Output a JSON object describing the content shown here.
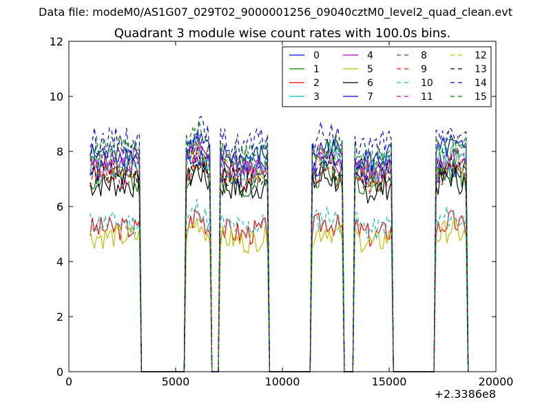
{
  "suptitle": "Data file: modeM0/AS1G07_029T02_9000001256_09040cztM0_level2_quad_clean.evt",
  "chart_data": {
    "type": "line",
    "title": "Quadrant 3 module wise count rates with 100.0s bins.",
    "xlabel": "",
    "ylabel": "",
    "x_offset_label": "+2.3386e8",
    "xlim": [
      0,
      20000
    ],
    "ylim": [
      0,
      12
    ],
    "xticks": [
      0,
      5000,
      10000,
      15000,
      20000
    ],
    "yticks": [
      0,
      2,
      4,
      6,
      8,
      10,
      12
    ],
    "grid": false,
    "legend_position": "top-right",
    "legend_columns": 4,
    "series": [
      {
        "name": "0",
        "color": "#0000ff",
        "dash": "solid",
        "level": 7.3,
        "amp": 0.5,
        "seed": 1
      },
      {
        "name": "1",
        "color": "#008000",
        "dash": "solid",
        "level": 7.0,
        "amp": 0.5,
        "seed": 2
      },
      {
        "name": "2",
        "color": "#ff0000",
        "dash": "solid",
        "level": 5.2,
        "amp": 0.45,
        "seed": 3
      },
      {
        "name": "3",
        "color": "#00bfbf",
        "dash": "solid",
        "level": 7.6,
        "amp": 0.5,
        "seed": 4
      },
      {
        "name": "4",
        "color": "#bf00bf",
        "dash": "solid",
        "level": 7.5,
        "amp": 0.45,
        "seed": 5
      },
      {
        "name": "5",
        "color": "#bfbf00",
        "dash": "solid",
        "level": 4.9,
        "amp": 0.45,
        "seed": 6
      },
      {
        "name": "6",
        "color": "#000000",
        "dash": "solid",
        "level": 6.8,
        "amp": 0.5,
        "seed": 7
      },
      {
        "name": "7",
        "color": "#0000ff",
        "dash": "solid",
        "level": 7.9,
        "amp": 0.45,
        "seed": 8
      },
      {
        "name": "8",
        "color": "#008000",
        "dash": "dashed",
        "level": 7.9,
        "amp": 0.5,
        "seed": 9
      },
      {
        "name": "9",
        "color": "#ff0000",
        "dash": "dashed",
        "level": 7.1,
        "amp": 0.45,
        "seed": 10
      },
      {
        "name": "10",
        "color": "#00bfbf",
        "dash": "dashed",
        "level": 5.4,
        "amp": 0.45,
        "seed": 11
      },
      {
        "name": "11",
        "color": "#bf00bf",
        "dash": "dashed",
        "level": 7.7,
        "amp": 0.45,
        "seed": 12
      },
      {
        "name": "12",
        "color": "#bfbf00",
        "dash": "dashed",
        "level": 7.4,
        "amp": 0.45,
        "seed": 13
      },
      {
        "name": "13",
        "color": "#000000",
        "dash": "dashed",
        "level": 7.2,
        "amp": 0.45,
        "seed": 14
      },
      {
        "name": "14",
        "color": "#0000ff",
        "dash": "dashed",
        "level": 8.4,
        "amp": 0.5,
        "seed": 15
      },
      {
        "name": "15",
        "color": "#008000",
        "dash": "dashed",
        "level": 8.1,
        "amp": 0.5,
        "seed": 16
      }
    ],
    "active_intervals": [
      {
        "start": 1000,
        "end": 3350,
        "trend": 0
      },
      {
        "start": 5450,
        "end": 6600,
        "trend": 0.6
      },
      {
        "start": 7050,
        "end": 9300,
        "trend": -0.2
      },
      {
        "start": 11350,
        "end": 12800,
        "trend": 0.3
      },
      {
        "start": 13400,
        "end": 15100,
        "trend": -0.3
      },
      {
        "start": 17200,
        "end": 18600,
        "trend": 0.3
      }
    ],
    "gap_level": 0,
    "bin_size": 100
  }
}
